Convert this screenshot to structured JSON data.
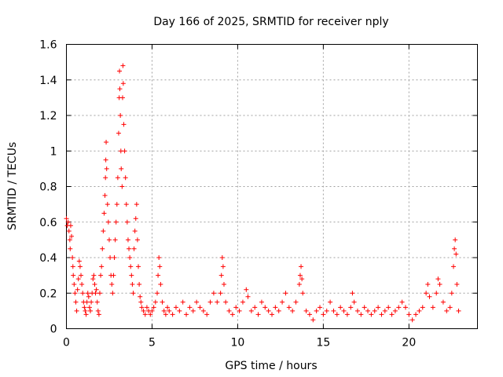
{
  "chart_data": {
    "type": "scatter",
    "title": "Day 166 of 2025, SRMTID for receiver nply",
    "xlabel": "GPS time / hours",
    "ylabel": "SRMTID / TECUs",
    "xlim": [
      0,
      24
    ],
    "ylim": [
      0,
      1.6
    ],
    "x_ticks": [
      0,
      5,
      10,
      15,
      20
    ],
    "y_ticks": [
      0,
      0.2,
      0.4,
      0.6,
      0.8,
      1,
      1.2,
      1.4,
      1.6
    ],
    "x_tick_labels": [
      "0",
      "5",
      "10",
      "15",
      "20"
    ],
    "y_tick_labels": [
      "0",
      "0.2",
      "0.4",
      "0.6",
      "0.8",
      "1",
      "1.2",
      "1.4",
      "1.6"
    ],
    "grid": true,
    "marker": "+",
    "marker_color": "#ff0000",
    "series": [
      {
        "name": "SRMTID",
        "points": [
          [
            0.0,
            0.62
          ],
          [
            0.05,
            0.58
          ],
          [
            0.1,
            0.6
          ],
          [
            0.15,
            0.55
          ],
          [
            0.2,
            0.5
          ],
          [
            0.22,
            0.45
          ],
          [
            0.25,
            0.58
          ],
          [
            0.3,
            0.52
          ],
          [
            0.35,
            0.4
          ],
          [
            0.38,
            0.35
          ],
          [
            0.4,
            0.3
          ],
          [
            0.45,
            0.25
          ],
          [
            0.5,
            0.2
          ],
          [
            0.55,
            0.15
          ],
          [
            0.6,
            0.1
          ],
          [
            0.65,
            0.22
          ],
          [
            0.7,
            0.28
          ],
          [
            0.75,
            0.38
          ],
          [
            0.8,
            0.35
          ],
          [
            0.85,
            0.3
          ],
          [
            0.9,
            0.25
          ],
          [
            0.95,
            0.2
          ],
          [
            1.0,
            0.15
          ],
          [
            1.05,
            0.12
          ],
          [
            1.1,
            0.1
          ],
          [
            1.15,
            0.08
          ],
          [
            1.2,
            0.15
          ],
          [
            1.25,
            0.2
          ],
          [
            1.3,
            0.18
          ],
          [
            1.35,
            0.12
          ],
          [
            1.4,
            0.1
          ],
          [
            1.45,
            0.15
          ],
          [
            1.5,
            0.2
          ],
          [
            1.55,
            0.28
          ],
          [
            1.6,
            0.3
          ],
          [
            1.65,
            0.25
          ],
          [
            1.7,
            0.2
          ],
          [
            1.75,
            0.22
          ],
          [
            1.8,
            0.15
          ],
          [
            1.85,
            0.1
          ],
          [
            1.9,
            0.08
          ],
          [
            1.95,
            0.2
          ],
          [
            2.0,
            0.3
          ],
          [
            2.05,
            0.35
          ],
          [
            2.1,
            0.45
          ],
          [
            2.15,
            0.55
          ],
          [
            2.2,
            0.65
          ],
          [
            2.25,
            0.75
          ],
          [
            2.28,
            0.85
          ],
          [
            2.3,
            0.95
          ],
          [
            2.32,
            1.05
          ],
          [
            2.35,
            0.9
          ],
          [
            2.4,
            0.7
          ],
          [
            2.45,
            0.6
          ],
          [
            2.5,
            0.5
          ],
          [
            2.55,
            0.4
          ],
          [
            2.6,
            0.3
          ],
          [
            2.65,
            0.25
          ],
          [
            2.7,
            0.2
          ],
          [
            2.75,
            0.3
          ],
          [
            2.8,
            0.4
          ],
          [
            2.85,
            0.5
          ],
          [
            2.9,
            0.6
          ],
          [
            2.95,
            0.7
          ],
          [
            3.0,
            0.85
          ],
          [
            3.05,
            1.1
          ],
          [
            3.08,
            1.3
          ],
          [
            3.1,
            1.45
          ],
          [
            3.12,
            1.35
          ],
          [
            3.15,
            1.2
          ],
          [
            3.18,
            1.0
          ],
          [
            3.2,
            0.9
          ],
          [
            3.25,
            0.8
          ],
          [
            3.28,
            1.3
          ],
          [
            3.3,
            1.48
          ],
          [
            3.32,
            1.38
          ],
          [
            3.35,
            1.15
          ],
          [
            3.4,
            1.0
          ],
          [
            3.45,
            0.85
          ],
          [
            3.5,
            0.7
          ],
          [
            3.55,
            0.6
          ],
          [
            3.6,
            0.5
          ],
          [
            3.65,
            0.45
          ],
          [
            3.7,
            0.4
          ],
          [
            3.75,
            0.35
          ],
          [
            3.8,
            0.3
          ],
          [
            3.85,
            0.25
          ],
          [
            3.9,
            0.2
          ],
          [
            3.95,
            0.45
          ],
          [
            4.0,
            0.55
          ],
          [
            4.05,
            0.62
          ],
          [
            4.1,
            0.7
          ],
          [
            4.15,
            0.5
          ],
          [
            4.2,
            0.35
          ],
          [
            4.25,
            0.25
          ],
          [
            4.3,
            0.18
          ],
          [
            4.35,
            0.15
          ],
          [
            4.4,
            0.12
          ],
          [
            4.5,
            0.1
          ],
          [
            4.6,
            0.08
          ],
          [
            4.7,
            0.12
          ],
          [
            4.8,
            0.1
          ],
          [
            4.9,
            0.08
          ],
          [
            5.0,
            0.1
          ],
          [
            5.1,
            0.12
          ],
          [
            5.2,
            0.15
          ],
          [
            5.3,
            0.2
          ],
          [
            5.35,
            0.3
          ],
          [
            5.4,
            0.4
          ],
          [
            5.45,
            0.35
          ],
          [
            5.5,
            0.25
          ],
          [
            5.6,
            0.15
          ],
          [
            5.7,
            0.1
          ],
          [
            5.8,
            0.08
          ],
          [
            5.9,
            0.12
          ],
          [
            6.0,
            0.1
          ],
          [
            6.2,
            0.08
          ],
          [
            6.4,
            0.12
          ],
          [
            6.6,
            0.1
          ],
          [
            6.8,
            0.15
          ],
          [
            7.0,
            0.08
          ],
          [
            7.2,
            0.12
          ],
          [
            7.4,
            0.1
          ],
          [
            7.6,
            0.15
          ],
          [
            7.8,
            0.12
          ],
          [
            8.0,
            0.1
          ],
          [
            8.2,
            0.08
          ],
          [
            8.4,
            0.15
          ],
          [
            8.6,
            0.2
          ],
          [
            8.8,
            0.15
          ],
          [
            9.0,
            0.2
          ],
          [
            9.05,
            0.3
          ],
          [
            9.1,
            0.4
          ],
          [
            9.15,
            0.35
          ],
          [
            9.2,
            0.25
          ],
          [
            9.3,
            0.15
          ],
          [
            9.5,
            0.1
          ],
          [
            9.7,
            0.08
          ],
          [
            9.9,
            0.12
          ],
          [
            10.1,
            0.1
          ],
          [
            10.3,
            0.15
          ],
          [
            10.5,
            0.22
          ],
          [
            10.6,
            0.18
          ],
          [
            10.8,
            0.1
          ],
          [
            11.0,
            0.12
          ],
          [
            11.2,
            0.08
          ],
          [
            11.4,
            0.15
          ],
          [
            11.6,
            0.12
          ],
          [
            11.8,
            0.1
          ],
          [
            12.0,
            0.08
          ],
          [
            12.2,
            0.12
          ],
          [
            12.4,
            0.1
          ],
          [
            12.6,
            0.15
          ],
          [
            12.8,
            0.2
          ],
          [
            13.0,
            0.12
          ],
          [
            13.2,
            0.1
          ],
          [
            13.4,
            0.15
          ],
          [
            13.6,
            0.25
          ],
          [
            13.65,
            0.3
          ],
          [
            13.7,
            0.35
          ],
          [
            13.75,
            0.28
          ],
          [
            13.8,
            0.2
          ],
          [
            14.0,
            0.1
          ],
          [
            14.2,
            0.08
          ],
          [
            14.4,
            0.05
          ],
          [
            14.6,
            0.1
          ],
          [
            14.8,
            0.12
          ],
          [
            15.0,
            0.08
          ],
          [
            15.2,
            0.1
          ],
          [
            15.4,
            0.15
          ],
          [
            15.6,
            0.1
          ],
          [
            15.8,
            0.08
          ],
          [
            16.0,
            0.12
          ],
          [
            16.2,
            0.1
          ],
          [
            16.4,
            0.08
          ],
          [
            16.6,
            0.12
          ],
          [
            16.7,
            0.2
          ],
          [
            16.8,
            0.15
          ],
          [
            17.0,
            0.1
          ],
          [
            17.2,
            0.08
          ],
          [
            17.4,
            0.12
          ],
          [
            17.6,
            0.1
          ],
          [
            17.8,
            0.08
          ],
          [
            18.0,
            0.1
          ],
          [
            18.2,
            0.12
          ],
          [
            18.4,
            0.08
          ],
          [
            18.6,
            0.1
          ],
          [
            18.8,
            0.12
          ],
          [
            19.0,
            0.08
          ],
          [
            19.2,
            0.1
          ],
          [
            19.4,
            0.12
          ],
          [
            19.6,
            0.15
          ],
          [
            19.8,
            0.12
          ],
          [
            20.0,
            0.08
          ],
          [
            20.2,
            0.05
          ],
          [
            20.4,
            0.08
          ],
          [
            20.6,
            0.1
          ],
          [
            20.8,
            0.12
          ],
          [
            21.0,
            0.2
          ],
          [
            21.1,
            0.25
          ],
          [
            21.2,
            0.18
          ],
          [
            21.4,
            0.12
          ],
          [
            21.6,
            0.2
          ],
          [
            21.7,
            0.28
          ],
          [
            21.8,
            0.25
          ],
          [
            22.0,
            0.15
          ],
          [
            22.2,
            0.1
          ],
          [
            22.4,
            0.12
          ],
          [
            22.5,
            0.2
          ],
          [
            22.6,
            0.35
          ],
          [
            22.65,
            0.45
          ],
          [
            22.7,
            0.5
          ],
          [
            22.75,
            0.42
          ],
          [
            22.8,
            0.25
          ],
          [
            22.9,
            0.1
          ]
        ]
      }
    ]
  }
}
